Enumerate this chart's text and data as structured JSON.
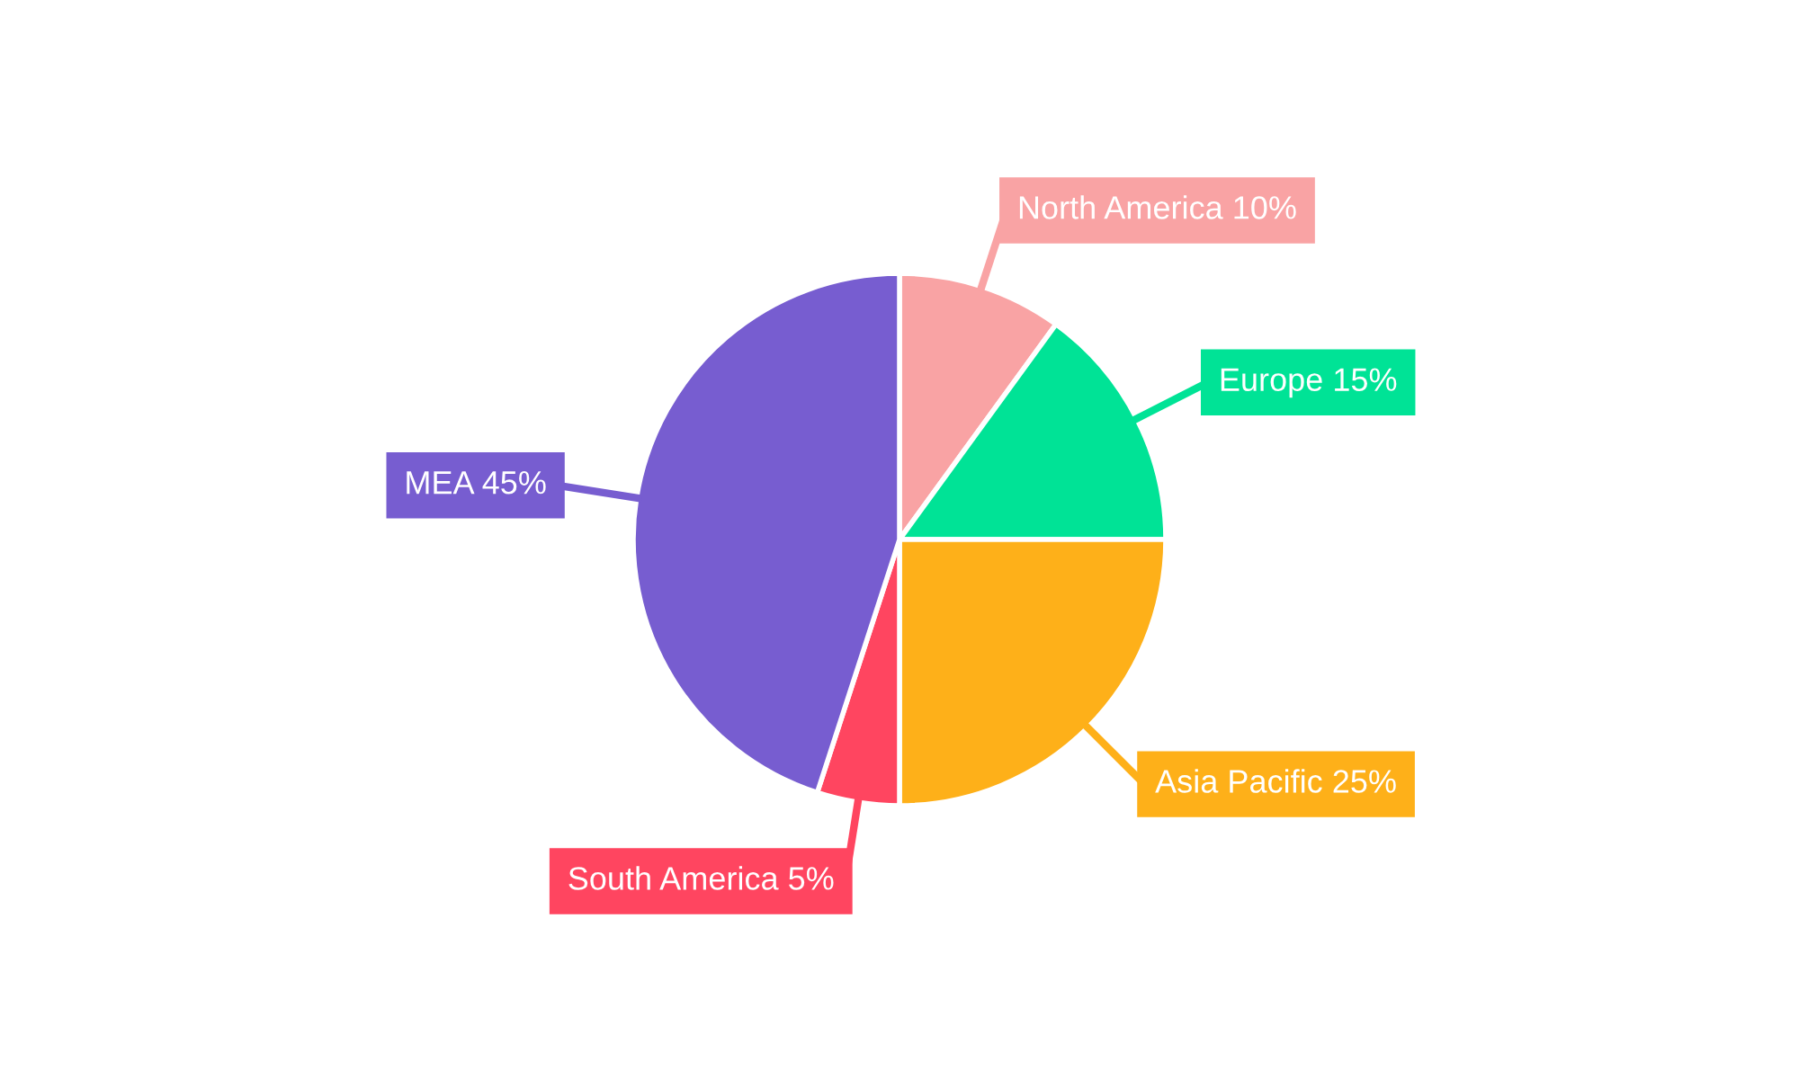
{
  "chart_data": {
    "type": "pie",
    "categories": [
      "North America",
      "Europe",
      "Asia Pacific",
      "South America",
      "MEA"
    ],
    "values": [
      10,
      15,
      25,
      5,
      45
    ],
    "value_labels": [
      "10%",
      "15%",
      "25%",
      "5%",
      "45%"
    ],
    "colors": [
      "#f9a3a4",
      "#00e396",
      "#feb019",
      "#ff4560",
      "#775dd0"
    ],
    "legend": false
  }
}
